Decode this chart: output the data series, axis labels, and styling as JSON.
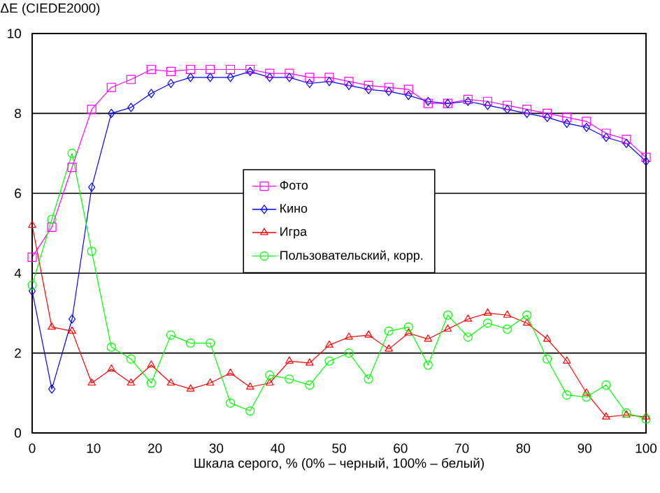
{
  "chart_data": {
    "type": "line",
    "xlabel": "Шкала серого, % (0% – черный, 100% – белый)",
    "ylabel": "ΔE (CIEDE2000)",
    "x": [
      0,
      3.2,
      6.5,
      9.7,
      12.9,
      16.1,
      19.4,
      22.6,
      25.8,
      29.0,
      32.3,
      35.5,
      38.7,
      41.9,
      45.2,
      48.4,
      51.6,
      54.8,
      58.1,
      61.3,
      64.5,
      67.7,
      71.0,
      74.2,
      77.4,
      80.6,
      83.9,
      87.1,
      90.3,
      93.5,
      96.8,
      100
    ],
    "series": [
      {
        "name": "Фото",
        "color": "#ff00ff",
        "marker": "square",
        "values": [
          4.4,
          5.15,
          6.65,
          8.1,
          8.65,
          8.85,
          9.1,
          9.05,
          9.1,
          9.1,
          9.1,
          9.1,
          9.0,
          9.0,
          8.9,
          8.9,
          8.8,
          8.7,
          8.65,
          8.6,
          8.25,
          8.25,
          8.35,
          8.3,
          8.2,
          8.1,
          8.0,
          7.9,
          7.8,
          7.5,
          7.35,
          6.9
        ]
      },
      {
        "name": "Кино",
        "color": "#0000ff",
        "marker": "diamond",
        "values": [
          3.55,
          1.1,
          2.85,
          6.15,
          8.0,
          8.15,
          8.5,
          8.75,
          8.9,
          8.9,
          8.9,
          9.05,
          8.9,
          8.9,
          8.75,
          8.8,
          8.7,
          8.6,
          8.55,
          8.45,
          8.3,
          8.25,
          8.3,
          8.2,
          8.1,
          8.0,
          7.9,
          7.75,
          7.65,
          7.4,
          7.25,
          6.8
        ]
      },
      {
        "name": "Игра",
        "color": "#ff0000",
        "marker": "triangle",
        "values": [
          5.2,
          2.65,
          2.55,
          1.25,
          1.6,
          1.25,
          1.7,
          1.25,
          1.1,
          1.25,
          1.5,
          1.15,
          1.25,
          1.8,
          1.75,
          2.2,
          2.4,
          2.45,
          2.1,
          2.5,
          2.35,
          2.6,
          2.85,
          3.0,
          2.95,
          2.75,
          2.35,
          1.8,
          1.0,
          0.4,
          0.45,
          0.4
        ]
      },
      {
        "name": "Пользовательский, корр.",
        "color": "#00ff00",
        "marker": "circle",
        "values": [
          3.7,
          5.35,
          7.0,
          4.55,
          2.15,
          1.85,
          1.25,
          2.45,
          2.25,
          2.25,
          0.75,
          0.55,
          1.45,
          1.35,
          1.2,
          1.8,
          2.0,
          1.35,
          2.55,
          2.65,
          1.7,
          2.95,
          2.4,
          2.75,
          2.6,
          2.95,
          1.85,
          0.95,
          0.9,
          1.2,
          0.5,
          0.35
        ]
      }
    ],
    "xlim": [
      0,
      100
    ],
    "ylim": [
      0,
      10
    ],
    "xticks": [
      0,
      10,
      20,
      30,
      40,
      50,
      60,
      70,
      80,
      90,
      100
    ],
    "yticks": [
      0,
      2,
      4,
      6,
      8,
      10
    ],
    "grid": "y",
    "legend": "center"
  }
}
